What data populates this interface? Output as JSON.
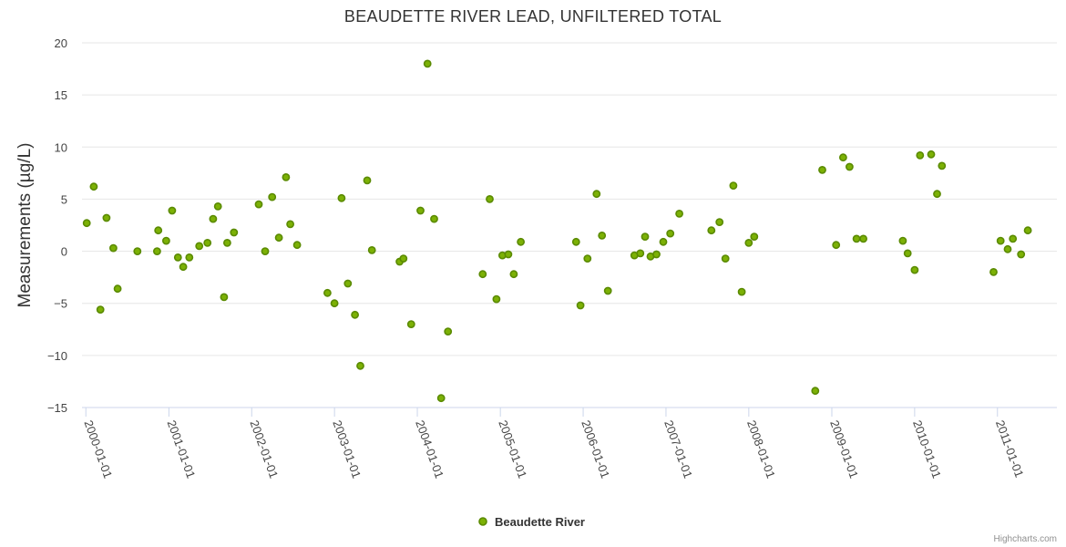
{
  "chart_data": {
    "type": "scatter",
    "title": "BEAUDETTE RIVER LEAD, UNFILTERED TOTAL",
    "xlabel": "",
    "ylabel": "Measurements (µg/L)",
    "ylim": [
      -15,
      20
    ],
    "yticks": [
      20,
      15,
      10,
      5,
      0,
      -5,
      -10,
      -15
    ],
    "xticks": [
      "2000-01-01",
      "2001-01-01",
      "2002-01-01",
      "2003-01-01",
      "2004-01-01",
      "2005-01-01",
      "2006-01-01",
      "2007-01-01",
      "2008-01-01",
      "2009-01-01",
      "2010-01-01",
      "2011-01-01"
    ],
    "xlim": [
      "1999-12-15",
      "2011-09-20"
    ],
    "grid": true,
    "legend": "bottom-center",
    "credits": "Highcharts.com",
    "series": [
      {
        "name": "Beaudette River",
        "color": "#7cb105",
        "points": [
          [
            "2000-01-05",
            2.7
          ],
          [
            "2000-02-05",
            6.2
          ],
          [
            "2000-03-05",
            -5.6
          ],
          [
            "2000-04-01",
            3.2
          ],
          [
            "2000-05-01",
            0.3
          ],
          [
            "2000-05-20",
            -3.6
          ],
          [
            "2000-08-15",
            0.0
          ],
          [
            "2000-11-10",
            0.0
          ],
          [
            "2000-11-15",
            2.0
          ],
          [
            "2000-12-20",
            1.0
          ],
          [
            "2001-01-15",
            3.9
          ],
          [
            "2001-02-10",
            -0.6
          ],
          [
            "2001-03-05",
            -1.5
          ],
          [
            "2001-04-01",
            -0.6
          ],
          [
            "2001-05-15",
            0.5
          ],
          [
            "2001-06-20",
            0.8
          ],
          [
            "2001-07-15",
            3.1
          ],
          [
            "2001-08-05",
            4.3
          ],
          [
            "2001-09-01",
            -4.4
          ],
          [
            "2001-09-15",
            0.8
          ],
          [
            "2001-10-15",
            1.8
          ],
          [
            "2002-02-01",
            4.5
          ],
          [
            "2002-03-01",
            0.0
          ],
          [
            "2002-04-01",
            5.2
          ],
          [
            "2002-05-01",
            1.3
          ],
          [
            "2002-06-01",
            7.1
          ],
          [
            "2002-06-20",
            2.6
          ],
          [
            "2002-07-20",
            0.6
          ],
          [
            "2002-12-01",
            -4.0
          ],
          [
            "2003-01-01",
            -5.0
          ],
          [
            "2003-02-01",
            5.1
          ],
          [
            "2003-03-01",
            -3.1
          ],
          [
            "2003-04-01",
            -6.1
          ],
          [
            "2003-04-25",
            -11.0
          ],
          [
            "2003-05-25",
            6.8
          ],
          [
            "2003-06-15",
            0.1
          ],
          [
            "2003-10-15",
            -1.0
          ],
          [
            "2003-11-01",
            -0.7
          ],
          [
            "2003-12-05",
            -7.0
          ],
          [
            "2004-01-15",
            3.9
          ],
          [
            "2004-02-15",
            18.0
          ],
          [
            "2004-03-15",
            3.1
          ],
          [
            "2004-04-15",
            -14.1
          ],
          [
            "2004-05-15",
            -7.7
          ],
          [
            "2004-10-15",
            -2.2
          ],
          [
            "2004-11-15",
            5.0
          ],
          [
            "2004-12-15",
            -4.6
          ],
          [
            "2005-01-10",
            -0.4
          ],
          [
            "2005-02-05",
            -0.3
          ],
          [
            "2005-03-01",
            -2.2
          ],
          [
            "2005-04-01",
            0.9
          ],
          [
            "2005-12-01",
            0.9
          ],
          [
            "2005-12-20",
            -5.2
          ],
          [
            "2006-01-20",
            -0.7
          ],
          [
            "2006-03-01",
            5.5
          ],
          [
            "2006-03-25",
            1.5
          ],
          [
            "2006-04-20",
            -3.8
          ],
          [
            "2006-08-15",
            -0.4
          ],
          [
            "2006-09-10",
            -0.2
          ],
          [
            "2006-10-01",
            1.4
          ],
          [
            "2006-10-25",
            -0.5
          ],
          [
            "2006-11-20",
            -0.3
          ],
          [
            "2006-12-20",
            0.9
          ],
          [
            "2007-01-20",
            1.7
          ],
          [
            "2007-03-01",
            3.6
          ],
          [
            "2007-07-20",
            2.0
          ],
          [
            "2007-08-25",
            2.8
          ],
          [
            "2007-09-20",
            -0.7
          ],
          [
            "2007-10-25",
            6.3
          ],
          [
            "2007-12-01",
            -3.9
          ],
          [
            "2008-01-01",
            0.8
          ],
          [
            "2008-01-25",
            1.4
          ],
          [
            "2008-10-20",
            -13.4
          ],
          [
            "2008-11-20",
            7.8
          ],
          [
            "2009-01-20",
            0.6
          ],
          [
            "2009-02-20",
            9.0
          ],
          [
            "2009-03-20",
            8.1
          ],
          [
            "2009-04-20",
            1.2
          ],
          [
            "2009-05-20",
            1.2
          ],
          [
            "2009-11-10",
            1.0
          ],
          [
            "2009-12-01",
            -0.2
          ],
          [
            "2010-01-01",
            -1.8
          ],
          [
            "2010-01-25",
            9.2
          ],
          [
            "2010-03-15",
            9.3
          ],
          [
            "2010-04-10",
            5.5
          ],
          [
            "2010-05-01",
            8.2
          ],
          [
            "2010-12-15",
            -2.0
          ],
          [
            "2011-01-15",
            1.0
          ],
          [
            "2011-02-15",
            0.2
          ],
          [
            "2011-03-10",
            1.2
          ],
          [
            "2011-04-15",
            -0.3
          ],
          [
            "2011-05-15",
            2.0
          ]
        ]
      }
    ]
  }
}
